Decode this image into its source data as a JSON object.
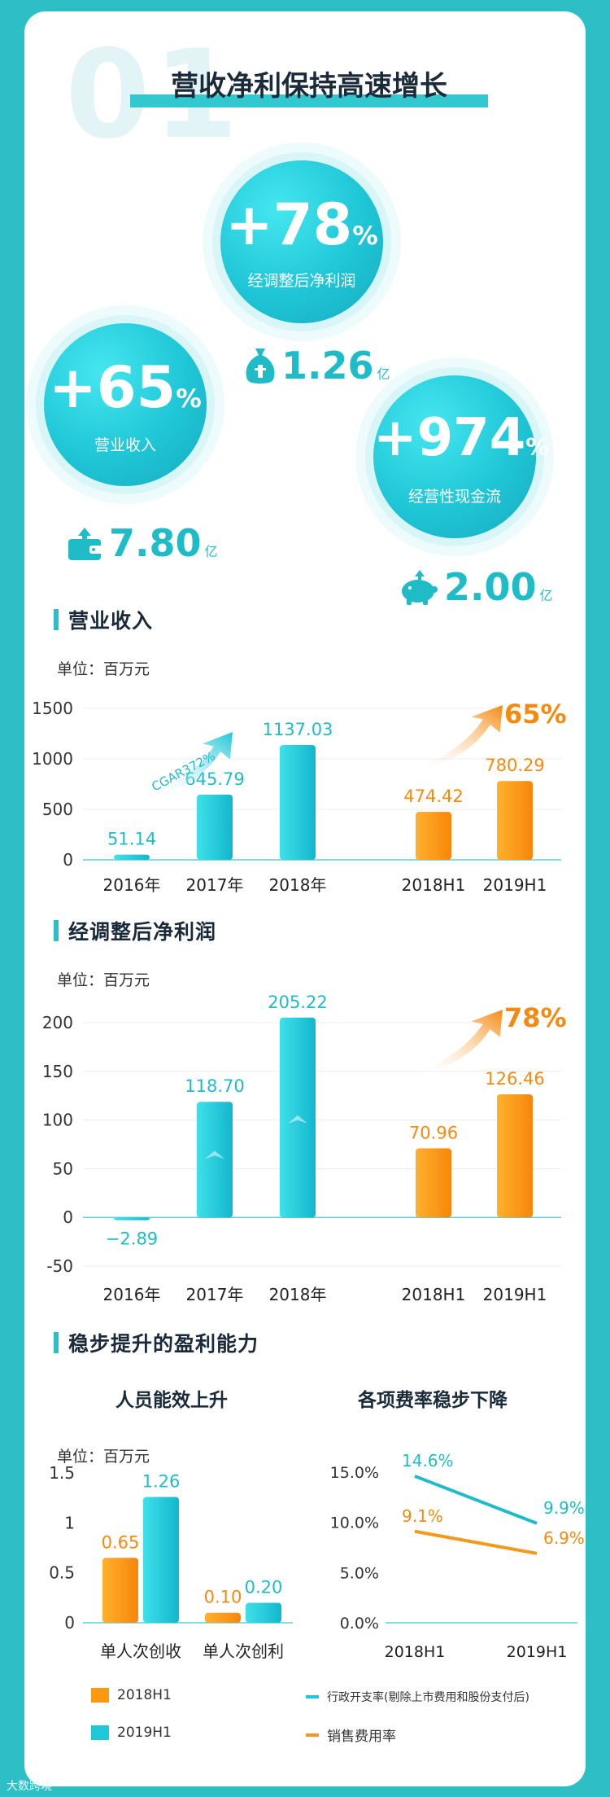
{
  "header": {
    "number": "01",
    "title": "营收净利保持高速增长"
  },
  "highlights": [
    {
      "value": "+78",
      "pct": "%",
      "label": "经调整后净利润",
      "amount": "1.26",
      "unit": "亿",
      "icon": "money-bag-icon"
    },
    {
      "value": "+65",
      "pct": "%",
      "label": "营业收入",
      "amount": "7.80",
      "unit": "亿",
      "icon": "wallet-icon"
    },
    {
      "value": "+974",
      "pct": "%",
      "label": "经营性现金流",
      "amount": "2.00",
      "unit": "亿",
      "icon": "piggy-bank-icon"
    }
  ],
  "sections": {
    "revenue": "营业收入",
    "profit": "经调整后净利润",
    "capability": "稳步提升的盈利能力"
  },
  "unit_text": "单位：百万元",
  "chart_data": [
    {
      "type": "bar",
      "title": "营业收入",
      "unit": "单位：百万元",
      "categories": [
        "2016年",
        "2017年",
        "2018年",
        "2018H1",
        "2019H1"
      ],
      "values": [
        51.14,
        645.79,
        1137.03,
        474.42,
        780.29
      ],
      "ylim": [
        0,
        1500
      ],
      "yticks": [
        0,
        500,
        1000,
        1500
      ],
      "annotations": [
        "CGAR372%",
        "65%"
      ],
      "colors": [
        "#1ec8d8",
        "#1ec8d8",
        "#1ec8d8",
        "#fb9a12",
        "#fb9a12"
      ]
    },
    {
      "type": "bar",
      "title": "经调整后净利润",
      "unit": "单位：百万元",
      "categories": [
        "2016年",
        "2017年",
        "2018年",
        "2018H1",
        "2019H1"
      ],
      "values": [
        -2.89,
        118.7,
        205.22,
        70.96,
        126.46
      ],
      "ylim": [
        -50,
        200
      ],
      "yticks": [
        -50,
        0,
        50,
        100,
        150,
        200
      ],
      "annotations": [
        "78%"
      ],
      "colors": [
        "#1ec8d8",
        "#1ec8d8",
        "#1ec8d8",
        "#fb9a12",
        "#fb9a12"
      ]
    },
    {
      "type": "bar",
      "title": "人员能效上升",
      "unit": "单位：百万元",
      "categories": [
        "单人次创收",
        "单人次创利"
      ],
      "series": [
        {
          "name": "2018H1",
          "values": [
            0.65,
            0.1
          ],
          "color": "#fb9a12"
        },
        {
          "name": "2019H1",
          "values": [
            1.26,
            0.2
          ],
          "color": "#1ec8d8"
        }
      ],
      "ylim": [
        0,
        1.5
      ],
      "yticks": [
        0,
        0.5,
        1.0,
        1.5
      ]
    },
    {
      "type": "line",
      "title": "各项费率稳步下降",
      "x": [
        "2018H1",
        "2019H1"
      ],
      "series": [
        {
          "name": "行政开支率(剔除上市费用和股份支付后)",
          "values": [
            14.6,
            9.9
          ],
          "color": "#1ec8d8"
        },
        {
          "name": "销售费用率",
          "values": [
            9.1,
            6.9
          ],
          "color": "#f39a1e"
        }
      ],
      "ylim": [
        0,
        15
      ],
      "yticks": [
        "0.0%",
        "5.0%",
        "10.0%",
        "15.0%"
      ]
    }
  ],
  "watermark": "大数跨境"
}
